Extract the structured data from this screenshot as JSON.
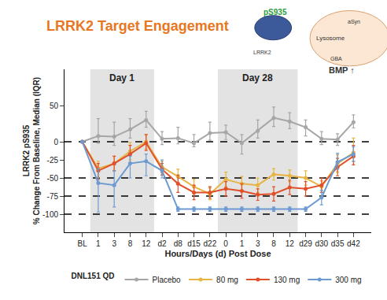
{
  "chart_data": {
    "type": "line",
    "title": "LRRK2 Target Engagement",
    "x_label": "Hours/Days (d) Post Dose",
    "y_label": [
      "LRRK2 pS935",
      "% Change From Baseline, Median (IQR)"
    ],
    "legend_title": "DNL151 QD",
    "legend": "bottom",
    "grid": false,
    "marker": "circle",
    "line_style": "solid",
    "categories": [
      "BL",
      "1",
      "3",
      "8",
      "12",
      "d2",
      "d8",
      "d15",
      "d22",
      "0",
      "1",
      "3",
      "8",
      "12",
      "d29",
      "d30",
      "d35",
      "d42"
    ],
    "ylim": [
      -125,
      100
    ],
    "yticks": [
      -100,
      -75,
      -50,
      -25,
      0,
      50
    ],
    "reference_lines": [
      0,
      -50,
      -75,
      -100
    ],
    "regions": [
      {
        "label": "Day 1",
        "start": 1,
        "end": 4
      },
      {
        "label": "Day 28",
        "start": 9,
        "end": 13
      }
    ],
    "annotations": [
      "pS935",
      "LRRK2",
      "aSyn",
      "Lysosome",
      "GBA",
      "BMP ↑"
    ],
    "series": [
      {
        "name": "Placebo",
        "color": "#a6a6a6",
        "values": [
          0,
          8,
          7,
          17,
          30,
          4,
          5,
          -2,
          12,
          13,
          -2,
          15,
          33,
          28,
          20,
          4,
          3,
          27
        ],
        "error_plus": [
          0,
          24,
          20,
          15,
          12,
          10,
          15,
          12,
          15,
          10,
          12,
          15,
          15,
          12,
          10,
          10,
          8,
          10
        ],
        "error_minus": [
          0,
          10,
          12,
          12,
          10,
          8,
          8,
          5,
          10,
          10,
          15,
          10,
          12,
          10,
          12,
          8,
          8,
          8
        ]
      },
      {
        "name": "80 mg",
        "color": "#e6b545",
        "values": [
          0,
          -37,
          -30,
          -13,
          0,
          -35,
          -48,
          -62,
          -72,
          -52,
          -58,
          -60,
          -45,
          -47,
          -50,
          -62,
          -30,
          -15
        ],
        "error_plus": [
          0,
          10,
          10,
          12,
          10,
          8,
          10,
          10,
          8,
          10,
          10,
          10,
          8,
          8,
          10,
          8,
          12,
          20
        ],
        "error_minus": [
          0,
          12,
          10,
          12,
          10,
          8,
          10,
          10,
          8,
          10,
          10,
          10,
          8,
          8,
          10,
          8,
          12,
          12
        ]
      },
      {
        "name": "130 mg",
        "color": "#e0502a",
        "values": [
          0,
          -40,
          -30,
          -17,
          -2,
          -38,
          -58,
          -70,
          -70,
          -65,
          -68,
          -73,
          -72,
          -63,
          -65,
          -60,
          -35,
          -20
        ],
        "error_plus": [
          0,
          10,
          10,
          12,
          12,
          8,
          12,
          10,
          8,
          10,
          10,
          8,
          10,
          10,
          10,
          10,
          12,
          15
        ],
        "error_minus": [
          0,
          12,
          10,
          12,
          10,
          8,
          12,
          10,
          8,
          10,
          10,
          8,
          10,
          10,
          10,
          10,
          12,
          12
        ]
      },
      {
        "name": "300 mg",
        "color": "#6d9bd1",
        "values": [
          0,
          -57,
          -60,
          -30,
          -27,
          -40,
          -93,
          -93,
          -93,
          -93,
          -93,
          -93,
          -93,
          -93,
          -93,
          -77,
          -28,
          -17
        ],
        "error_plus": [
          0,
          20,
          20,
          10,
          10,
          15,
          3,
          3,
          3,
          3,
          3,
          3,
          3,
          3,
          3,
          10,
          12,
          10
        ],
        "error_minus": [
          0,
          40,
          30,
          20,
          20,
          10,
          3,
          3,
          3,
          3,
          3,
          3,
          3,
          3,
          3,
          10,
          10,
          10
        ]
      }
    ]
  }
}
